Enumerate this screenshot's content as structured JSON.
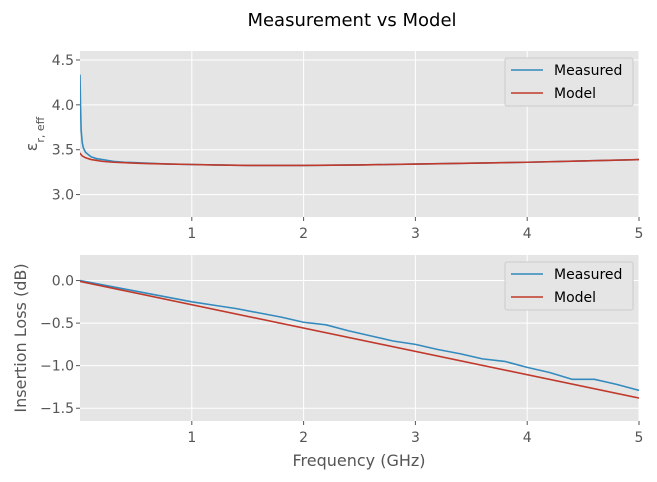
{
  "title": "Measurement vs Model",
  "chart_data": [
    {
      "type": "line",
      "panel": "top",
      "title": "",
      "xlabel": "",
      "ylabel": "ε_{r,eff}",
      "xlim": [
        0.0,
        5.0
      ],
      "ylim": [
        2.75,
        4.6
      ],
      "xticks": [
        1,
        2,
        3,
        4,
        5
      ],
      "yticks": [
        3.0,
        3.5,
        4.0,
        4.5
      ],
      "grid": true,
      "legend": "top-right",
      "series": [
        {
          "name": "Measured",
          "color": "#348ABD",
          "x": [
            0.0,
            0.005,
            0.01,
            0.02,
            0.03,
            0.05,
            0.08,
            0.1,
            0.15,
            0.2,
            0.3,
            0.4,
            0.5,
            0.6,
            0.8,
            1.0,
            1.2,
            1.5,
            2.0,
            2.5,
            3.0,
            3.5,
            4.0,
            4.5,
            5.0
          ],
          "y": [
            4.33,
            3.98,
            3.72,
            3.58,
            3.52,
            3.47,
            3.44,
            3.42,
            3.4,
            3.39,
            3.37,
            3.36,
            3.355,
            3.35,
            3.34,
            3.335,
            3.33,
            3.325,
            3.325,
            3.33,
            3.34,
            3.35,
            3.36,
            3.375,
            3.39
          ]
        },
        {
          "name": "Model",
          "color": "#C0392B",
          "x": [
            0.0,
            0.02,
            0.05,
            0.1,
            0.15,
            0.2,
            0.3,
            0.4,
            0.5,
            0.6,
            0.8,
            1.0,
            1.2,
            1.5,
            2.0,
            2.5,
            3.0,
            3.5,
            4.0,
            4.5,
            5.0
          ],
          "y": [
            3.46,
            3.43,
            3.41,
            3.39,
            3.38,
            3.37,
            3.36,
            3.355,
            3.35,
            3.345,
            3.34,
            3.335,
            3.33,
            3.325,
            3.325,
            3.33,
            3.34,
            3.35,
            3.36,
            3.375,
            3.39
          ]
        }
      ]
    },
    {
      "type": "line",
      "panel": "bottom",
      "title": "",
      "xlabel": "Frequency (GHz)",
      "ylabel": "Insertion Loss (dB)",
      "xlim": [
        0.0,
        5.0
      ],
      "ylim": [
        -1.65,
        0.3
      ],
      "xticks": [
        1,
        2,
        3,
        4,
        5
      ],
      "yticks": [
        0.0,
        -0.5,
        -1.0,
        -1.5
      ],
      "ytick_labels": [
        "0.0",
        "−0.5",
        "−1.0",
        "−1.5"
      ],
      "grid": true,
      "legend": "top-right",
      "series": [
        {
          "name": "Measured",
          "color": "#348ABD",
          "x": [
            0.0,
            0.2,
            0.4,
            0.6,
            0.8,
            1.0,
            1.2,
            1.4,
            1.6,
            1.8,
            2.0,
            2.2,
            2.4,
            2.6,
            2.8,
            3.0,
            3.2,
            3.4,
            3.6,
            3.8,
            4.0,
            4.2,
            4.4,
            4.6,
            4.8,
            5.0
          ],
          "y": [
            0.0,
            -0.05,
            -0.1,
            -0.15,
            -0.2,
            -0.25,
            -0.29,
            -0.33,
            -0.38,
            -0.43,
            -0.49,
            -0.52,
            -0.59,
            -0.65,
            -0.71,
            -0.75,
            -0.81,
            -0.86,
            -0.92,
            -0.95,
            -1.02,
            -1.08,
            -1.16,
            -1.16,
            -1.22,
            -1.29
          ]
        },
        {
          "name": "Model",
          "color": "#C0392B",
          "x": [
            0.0,
            5.0
          ],
          "y": [
            -0.01,
            -1.38
          ]
        }
      ]
    }
  ]
}
